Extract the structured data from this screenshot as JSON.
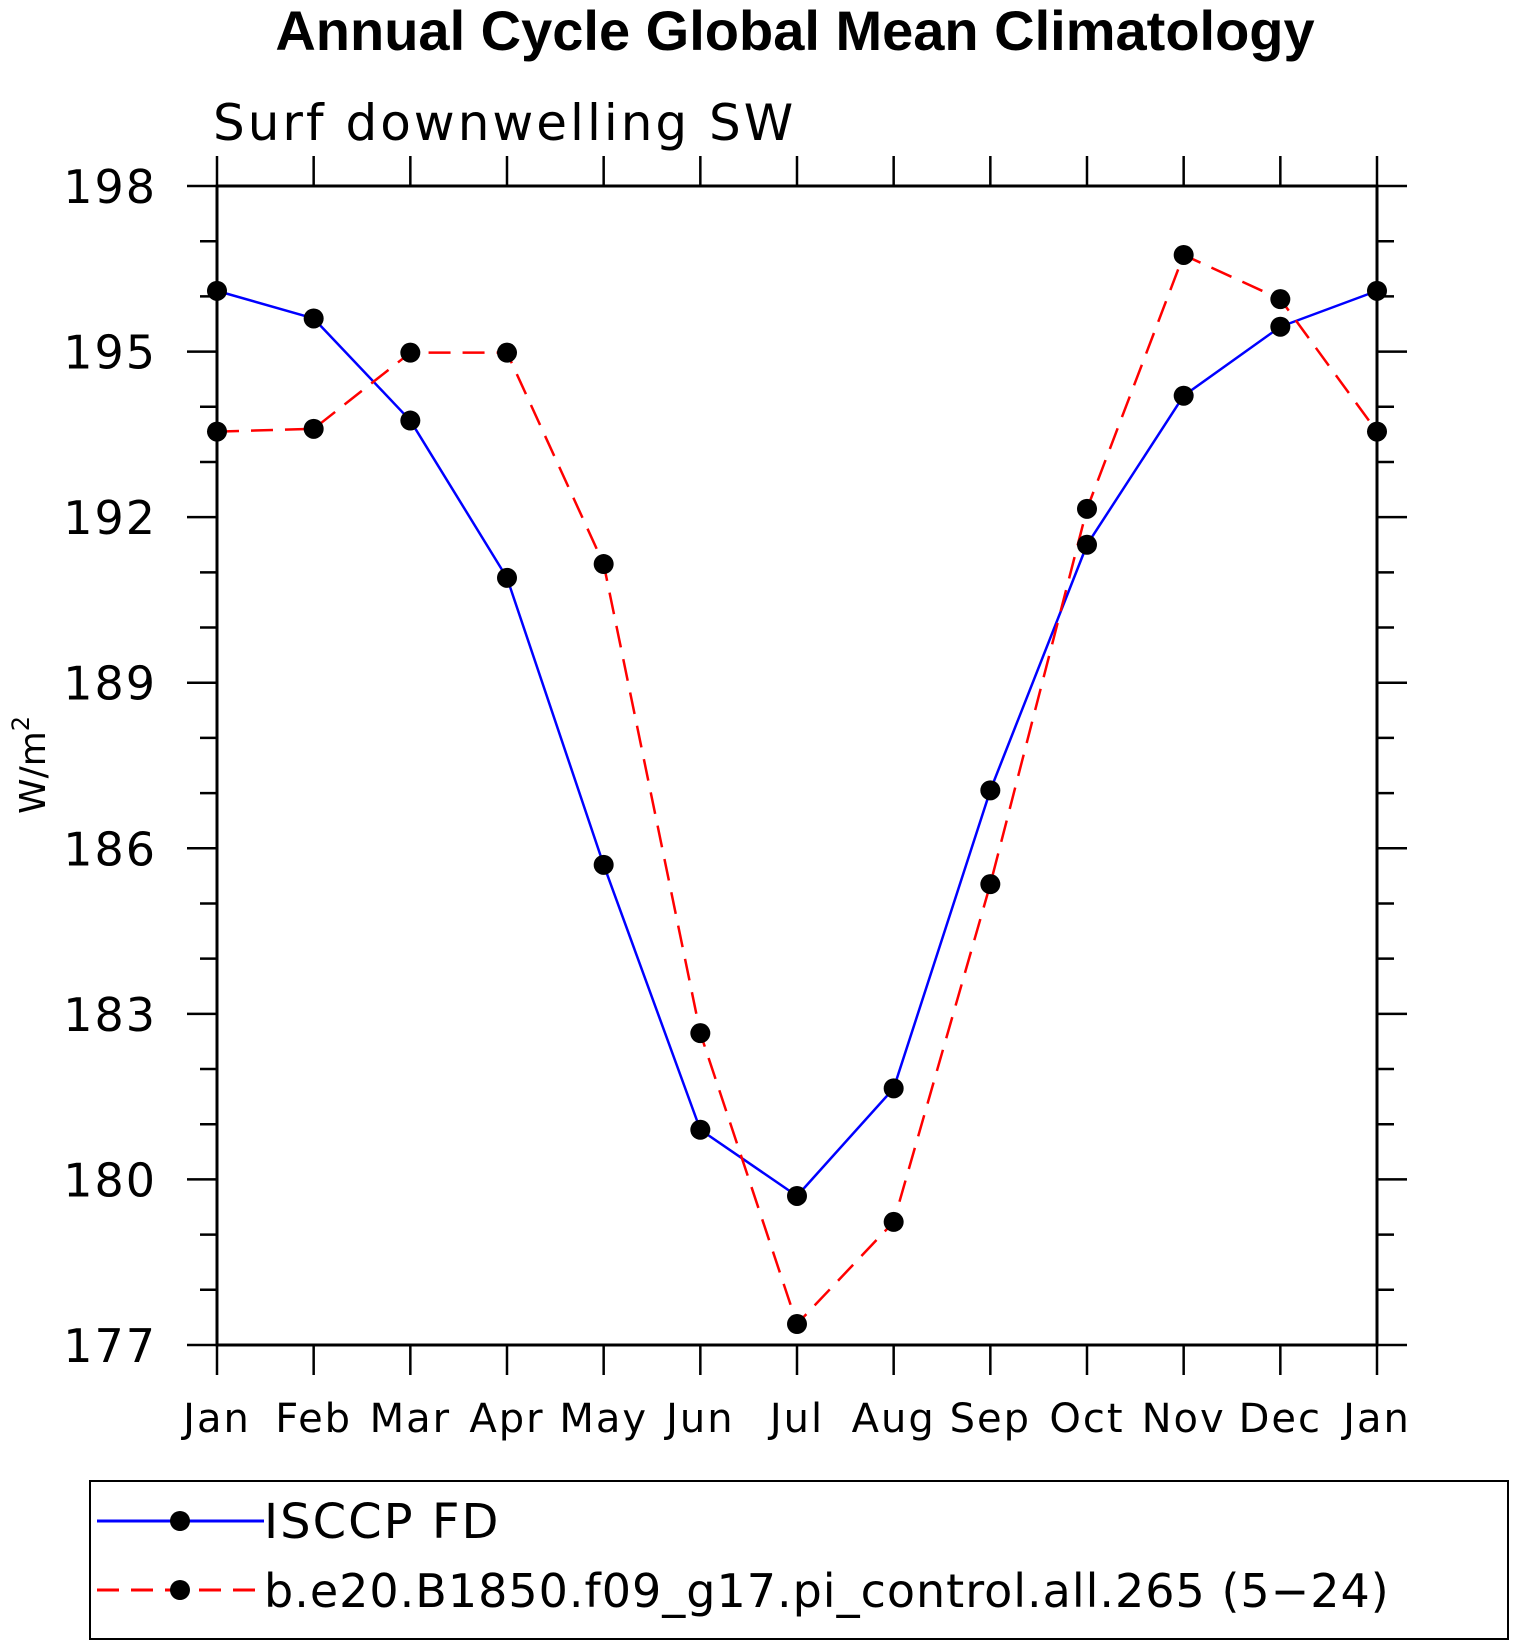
{
  "chart_data": {
    "type": "line",
    "title": "Annual Cycle Global Mean Climatology",
    "subtitle": "Surf downwelling SW",
    "ylabel": "W/m",
    "ylabel_superscript": "2",
    "xlabel": "",
    "categories": [
      "Jan",
      "Feb",
      "Mar",
      "Apr",
      "May",
      "Jun",
      "Jul",
      "Aug",
      "Sep",
      "Oct",
      "Nov",
      "Dec",
      "Jan"
    ],
    "ylim": [
      177,
      198
    ],
    "yticks": [
      177,
      180,
      183,
      186,
      189,
      192,
      195,
      198
    ],
    "yminor_step": 1,
    "grid": false,
    "legend_position": "bottom",
    "series": [
      {
        "name": "ISCCP FD",
        "color": "#0000ff",
        "line_style": "solid",
        "marker": "filled-circle",
        "values": [
          196.1,
          195.6,
          193.75,
          190.9,
          185.7,
          180.9,
          179.7,
          181.65,
          187.05,
          191.5,
          194.2,
          195.45,
          196.1
        ]
      },
      {
        "name": "b.e20.B1850.f09_g17.pi_control.all.265 (5−24)",
        "color": "#ff0000",
        "line_style": "dashed",
        "marker": "filled-circle",
        "values": [
          193.55,
          193.6,
          194.98,
          194.98,
          191.15,
          182.65,
          177.38,
          179.23,
          185.35,
          192.15,
          196.75,
          195.95,
          193.55
        ]
      }
    ]
  }
}
